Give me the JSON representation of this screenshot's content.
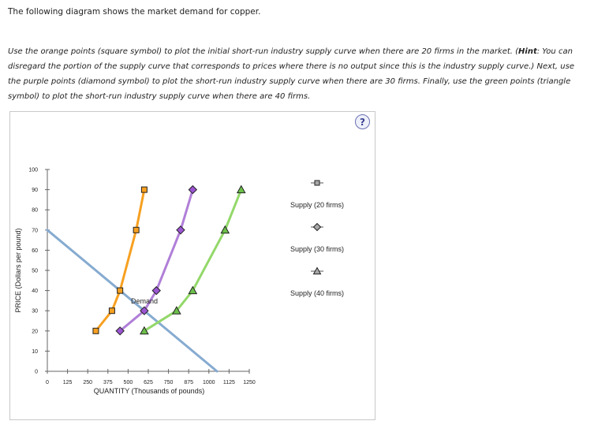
{
  "intro": "The following diagram shows the market demand for copper.",
  "instructions": {
    "part1": "Use the orange points (square symbol) to plot the initial short-run industry supply curve when there are 20 firms in the market. (",
    "hint_label": "Hint",
    "part2": ": You can disregard the portion of the supply curve that corresponds to prices where there is no output since this is the industry supply curve.) Next, use the purple points (diamond symbol) to plot the short-run industry supply curve when there are 30 firms. Finally, use the green points (triangle symbol) to plot the short-run industry supply curve when there are 40 firms."
  },
  "help_label": "?",
  "chart_data": {
    "type": "line",
    "xlabel": "QUANTITY (Thousands of pounds)",
    "ylabel": "PRICE (Dollars per pound)",
    "xlim": [
      0,
      1250
    ],
    "ylim": [
      0,
      100
    ],
    "xticks": [
      0,
      125,
      250,
      375,
      500,
      625,
      750,
      875,
      1000,
      1125,
      1250
    ],
    "yticks": [
      0,
      10,
      20,
      30,
      40,
      50,
      60,
      70,
      80,
      90,
      100
    ],
    "grid": false,
    "legend_position": "right",
    "demand": {
      "label": "Demand",
      "color": "#86abd0",
      "points": [
        [
          0,
          70
        ],
        [
          1050,
          0
        ]
      ]
    },
    "series": [
      {
        "name": "Supply (20 firms)",
        "color": "#f7a020",
        "marker": "square",
        "marker_color": "#f7a020",
        "points": [
          [
            300,
            20
          ],
          [
            400,
            30
          ],
          [
            450,
            40
          ],
          [
            550,
            70
          ],
          [
            600,
            90
          ]
        ]
      },
      {
        "name": "Supply (30 firms)",
        "color": "#b07fd8",
        "marker": "diamond",
        "marker_color": "#9b55d2",
        "points": [
          [
            450,
            20
          ],
          [
            600,
            30
          ],
          [
            675,
            40
          ],
          [
            825,
            70
          ],
          [
            900,
            90
          ]
        ]
      },
      {
        "name": "Supply (40 firms)",
        "color": "#93d86a",
        "marker": "triangle",
        "marker_color": "#6cc04a",
        "points": [
          [
            600,
            20
          ],
          [
            800,
            30
          ],
          [
            900,
            40
          ],
          [
            1100,
            70
          ],
          [
            1200,
            90
          ]
        ]
      }
    ]
  }
}
